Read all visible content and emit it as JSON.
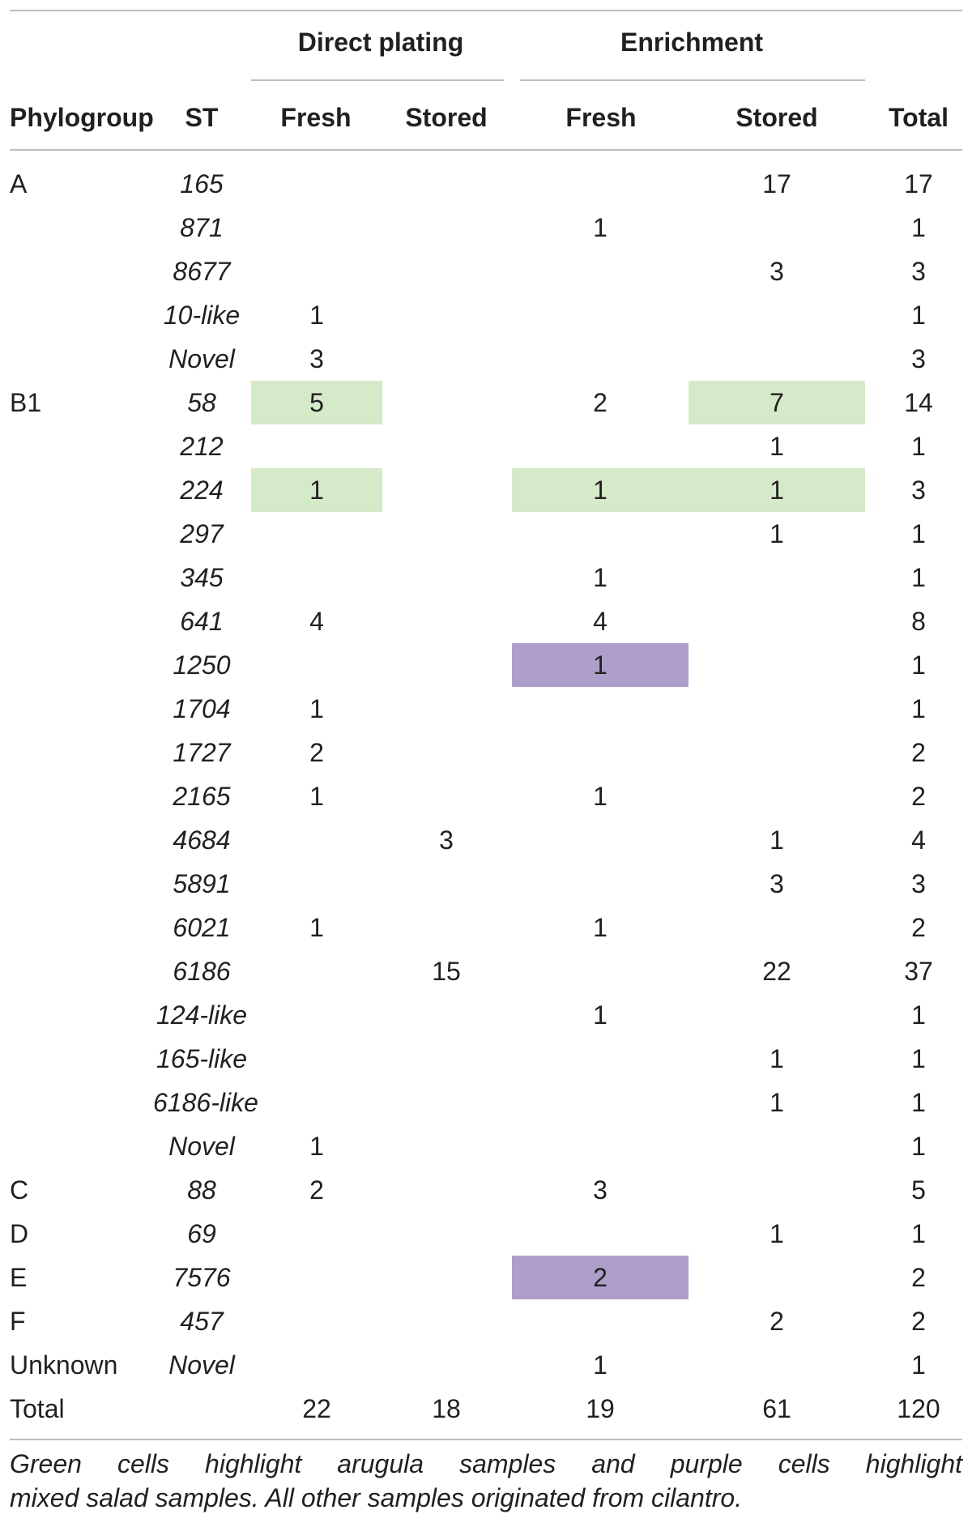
{
  "table": {
    "group_headers": [
      "Direct plating",
      "Enrichment"
    ],
    "column_headers": [
      "Phylogroup",
      "ST",
      "Fresh",
      "Stored",
      "Fresh",
      "Stored",
      "Total"
    ],
    "highlight_colors": {
      "green": "#d5eac8",
      "purple": "#ad9fc9"
    },
    "rows": [
      {
        "phylogroup": "A",
        "st": "165",
        "dp_fresh": "",
        "dp_stored": "",
        "en_fresh": "",
        "en_stored": "17",
        "total": "17"
      },
      {
        "phylogroup": "",
        "st": "871",
        "dp_fresh": "",
        "dp_stored": "",
        "en_fresh": "1",
        "en_stored": "",
        "total": "1"
      },
      {
        "phylogroup": "",
        "st": "8677",
        "dp_fresh": "",
        "dp_stored": "",
        "en_fresh": "",
        "en_stored": "3",
        "total": "3"
      },
      {
        "phylogroup": "",
        "st": "10-like",
        "dp_fresh": "1",
        "dp_stored": "",
        "en_fresh": "",
        "en_stored": "",
        "total": "1"
      },
      {
        "phylogroup": "",
        "st": "Novel",
        "dp_fresh": "3",
        "dp_stored": "",
        "en_fresh": "",
        "en_stored": "",
        "total": "3"
      },
      {
        "phylogroup": "B1",
        "st": "58",
        "dp_fresh": "5",
        "dp_stored": "",
        "en_fresh": "2",
        "en_stored": "7",
        "total": "14",
        "hl": {
          "dp_fresh": "green",
          "en_stored": "green"
        }
      },
      {
        "phylogroup": "",
        "st": "212",
        "dp_fresh": "",
        "dp_stored": "",
        "en_fresh": "",
        "en_stored": "1",
        "total": "1"
      },
      {
        "phylogroup": "",
        "st": "224",
        "dp_fresh": "1",
        "dp_stored": "",
        "en_fresh": "1",
        "en_stored": "1",
        "total": "3",
        "hl": {
          "dp_fresh": "green",
          "en_fresh": "green",
          "en_stored": "green"
        }
      },
      {
        "phylogroup": "",
        "st": "297",
        "dp_fresh": "",
        "dp_stored": "",
        "en_fresh": "",
        "en_stored": "1",
        "total": "1"
      },
      {
        "phylogroup": "",
        "st": "345",
        "dp_fresh": "",
        "dp_stored": "",
        "en_fresh": "1",
        "en_stored": "",
        "total": "1"
      },
      {
        "phylogroup": "",
        "st": "641",
        "dp_fresh": "4",
        "dp_stored": "",
        "en_fresh": "4",
        "en_stored": "",
        "total": "8"
      },
      {
        "phylogroup": "",
        "st": "1250",
        "dp_fresh": "",
        "dp_stored": "",
        "en_fresh": "1",
        "en_stored": "",
        "total": "1",
        "hl": {
          "en_fresh": "purple"
        }
      },
      {
        "phylogroup": "",
        "st": "1704",
        "dp_fresh": "1",
        "dp_stored": "",
        "en_fresh": "",
        "en_stored": "",
        "total": "1"
      },
      {
        "phylogroup": "",
        "st": "1727",
        "dp_fresh": "2",
        "dp_stored": "",
        "en_fresh": "",
        "en_stored": "",
        "total": "2"
      },
      {
        "phylogroup": "",
        "st": "2165",
        "dp_fresh": "1",
        "dp_stored": "",
        "en_fresh": "1",
        "en_stored": "",
        "total": "2"
      },
      {
        "phylogroup": "",
        "st": "4684",
        "dp_fresh": "",
        "dp_stored": "3",
        "en_fresh": "",
        "en_stored": "1",
        "total": "4"
      },
      {
        "phylogroup": "",
        "st": "5891",
        "dp_fresh": "",
        "dp_stored": "",
        "en_fresh": "",
        "en_stored": "3",
        "total": "3"
      },
      {
        "phylogroup": "",
        "st": "6021",
        "dp_fresh": "1",
        "dp_stored": "",
        "en_fresh": "1",
        "en_stored": "",
        "total": "2"
      },
      {
        "phylogroup": "",
        "st": "6186",
        "dp_fresh": "",
        "dp_stored": "15",
        "en_fresh": "",
        "en_stored": "22",
        "total": "37"
      },
      {
        "phylogroup": "",
        "st": "124-like",
        "dp_fresh": "",
        "dp_stored": "",
        "en_fresh": "1",
        "en_stored": "",
        "total": "1"
      },
      {
        "phylogroup": "",
        "st": "165-like",
        "dp_fresh": "",
        "dp_stored": "",
        "en_fresh": "",
        "en_stored": "1",
        "total": "1"
      },
      {
        "phylogroup": "",
        "st": "6186-like",
        "dp_fresh": "",
        "dp_stored": "",
        "en_fresh": "",
        "en_stored": "1",
        "total": "1"
      },
      {
        "phylogroup": "",
        "st": "Novel",
        "dp_fresh": "1",
        "dp_stored": "",
        "en_fresh": "",
        "en_stored": "",
        "total": "1"
      },
      {
        "phylogroup": "C",
        "st": "88",
        "dp_fresh": "2",
        "dp_stored": "",
        "en_fresh": "3",
        "en_stored": "",
        "total": "5"
      },
      {
        "phylogroup": "D",
        "st": "69",
        "dp_fresh": "",
        "dp_stored": "",
        "en_fresh": "",
        "en_stored": "1",
        "total": "1"
      },
      {
        "phylogroup": "E",
        "st": "7576",
        "dp_fresh": "",
        "dp_stored": "",
        "en_fresh": "2",
        "en_stored": "",
        "total": "2",
        "hl": {
          "en_fresh": "purple"
        }
      },
      {
        "phylogroup": "F",
        "st": "457",
        "dp_fresh": "",
        "dp_stored": "",
        "en_fresh": "",
        "en_stored": "2",
        "total": "2"
      },
      {
        "phylogroup": "Unknown",
        "st": "Novel",
        "dp_fresh": "",
        "dp_stored": "",
        "en_fresh": "1",
        "en_stored": "",
        "total": "1"
      },
      {
        "phylogroup": "Total",
        "st": "",
        "dp_fresh": "22",
        "dp_stored": "18",
        "en_fresh": "19",
        "en_stored": "61",
        "total": "120",
        "is_total": true
      }
    ]
  },
  "caption": {
    "line1_words": [
      "Green",
      "cells",
      "highlight",
      "arugula",
      "samples",
      "and",
      "purple",
      "cells",
      "highlight"
    ],
    "line2": "mixed salad samples. All other samples originated from cilantro."
  }
}
